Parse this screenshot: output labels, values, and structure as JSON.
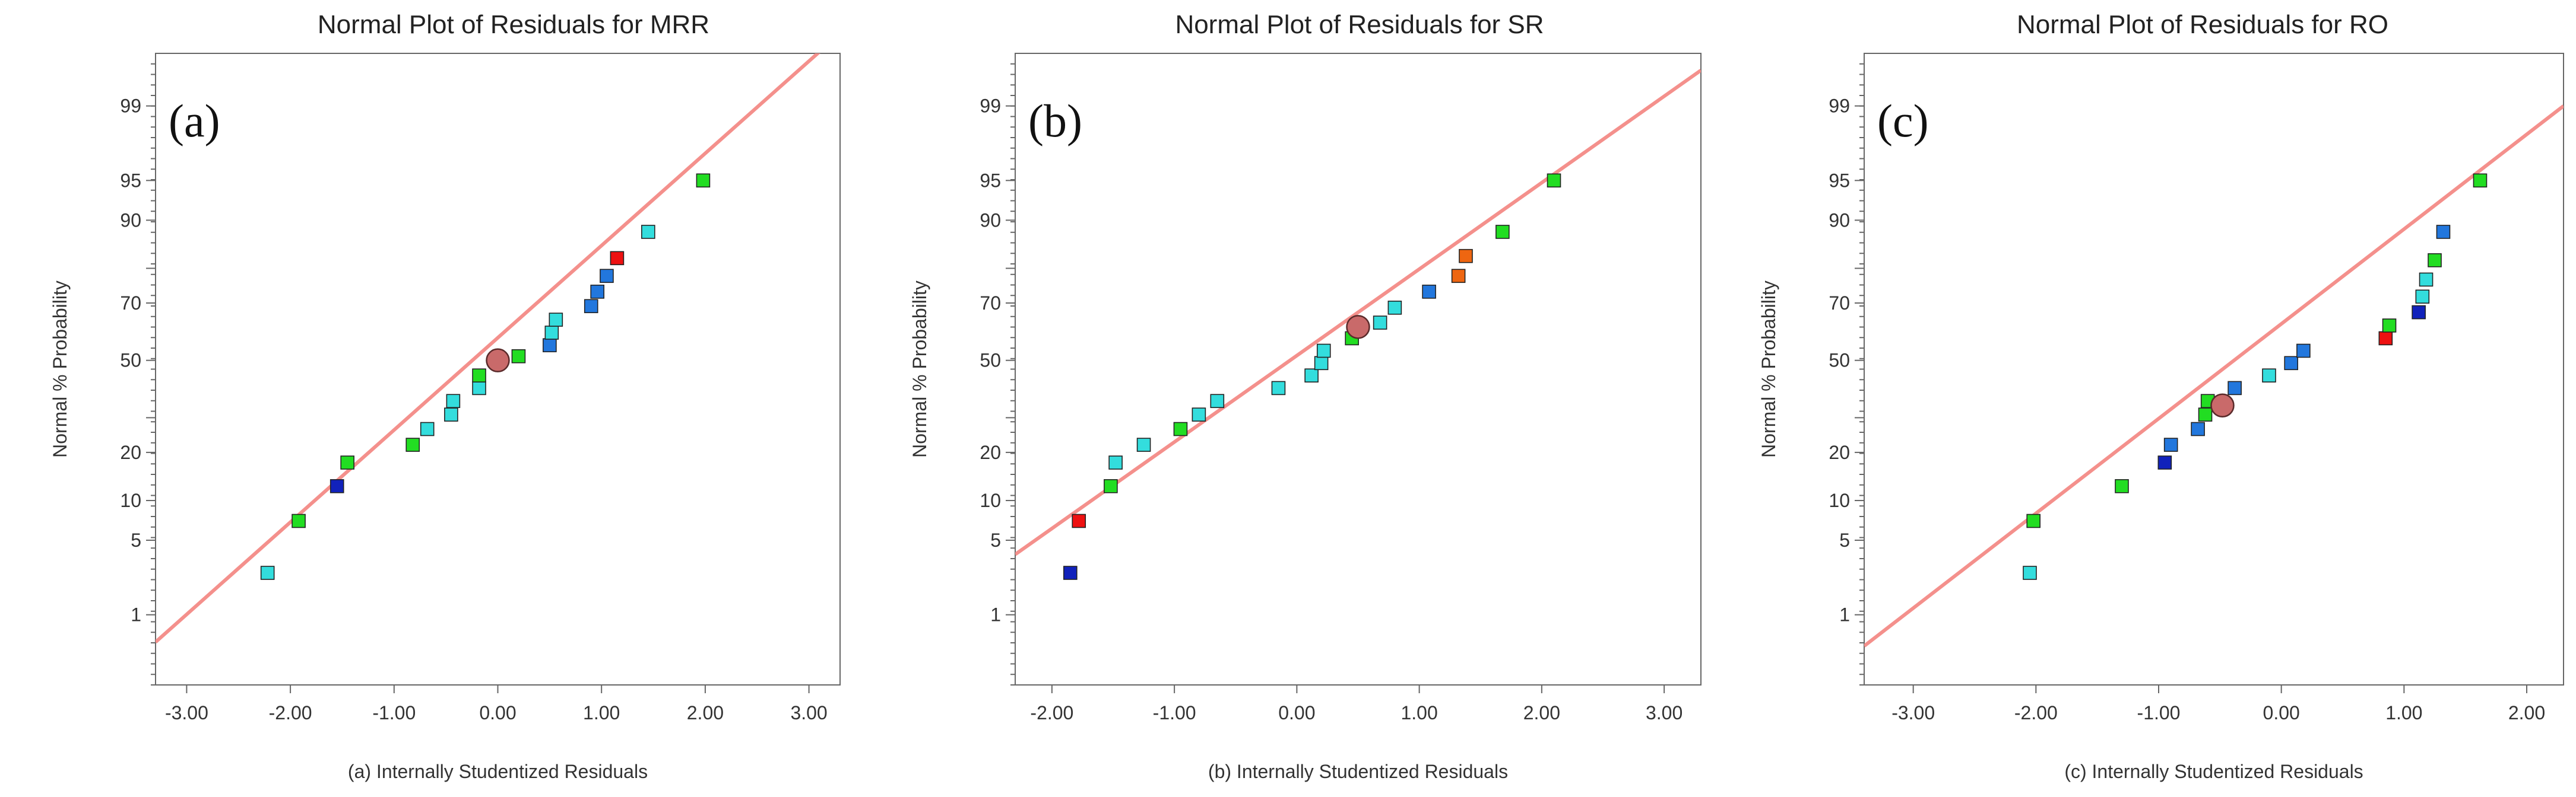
{
  "colors": {
    "fit_line": "#f4908c",
    "green": "#22dd22",
    "cyan": "#33dddd",
    "blue": "#2277dd",
    "navy": "#1122bb",
    "red": "#ee1111",
    "orange": "#ee6611",
    "center_point": "#c96a6a"
  },
  "chart_data": [
    {
      "type": "scatter",
      "panel_letter": "(a)",
      "title": "Normal Plot of Residuals for MRR",
      "xlabel": "(a) Internally Studentized Residuals",
      "ylabel": "Normal % Probability",
      "xlim": [
        -3.3,
        3.3
      ],
      "xticks": [
        -3,
        -2,
        -1,
        0,
        1,
        2,
        3
      ],
      "xtick_labels": [
        "-3.00",
        "-2.00",
        "-1.00",
        "0.00",
        "1.00",
        "2.00",
        "3.00"
      ],
      "yticks": [
        1,
        5,
        10,
        20,
        30,
        50,
        70,
        80,
        90,
        95,
        99
      ],
      "ytick_labels": [
        "1",
        "5",
        "10",
        "20",
        "",
        "50",
        "70",
        "",
        "90",
        "95",
        "99"
      ],
      "fit_line": {
        "x": [
          -3.3,
          3.3
        ],
        "y": [
          0.5,
          99.86
        ]
      },
      "points": [
        {
          "x": -2.22,
          "y": 2.6,
          "color": "cyan"
        },
        {
          "x": -1.92,
          "y": 7.1,
          "color": "green"
        },
        {
          "x": -1.55,
          "y": 12.5,
          "color": "navy"
        },
        {
          "x": -1.45,
          "y": 17.5,
          "color": "green"
        },
        {
          "x": -0.82,
          "y": 22.0,
          "color": "green"
        },
        {
          "x": -0.68,
          "y": 26.5,
          "color": "cyan"
        },
        {
          "x": -0.45,
          "y": 31.0,
          "color": "cyan"
        },
        {
          "x": -0.43,
          "y": 35.5,
          "color": "cyan"
        },
        {
          "x": -0.18,
          "y": 40.0,
          "color": "cyan"
        },
        {
          "x": -0.18,
          "y": 44.5,
          "color": "green"
        },
        {
          "x": 0.2,
          "y": 51.5,
          "color": "green"
        },
        {
          "x": 0.5,
          "y": 55.5,
          "color": "blue"
        },
        {
          "x": 0.52,
          "y": 60.0,
          "color": "cyan"
        },
        {
          "x": 0.56,
          "y": 64.5,
          "color": "cyan"
        },
        {
          "x": 0.9,
          "y": 69.0,
          "color": "blue"
        },
        {
          "x": 0.96,
          "y": 73.5,
          "color": "blue"
        },
        {
          "x": 1.05,
          "y": 78.0,
          "color": "blue"
        },
        {
          "x": 1.15,
          "y": 82.5,
          "color": "red"
        },
        {
          "x": 1.45,
          "y": 88.0,
          "color": "cyan"
        },
        {
          "x": 1.98,
          "y": 95.0,
          "color": "green"
        }
      ],
      "center_point": {
        "x": 0.0,
        "y": 50.0
      }
    },
    {
      "type": "scatter",
      "panel_letter": "(b)",
      "title": "Normal Plot of Residuals for SR",
      "xlabel": "(b) Internally Studentized Residuals",
      "ylabel": "Normal % Probability",
      "xlim": [
        -2.3,
        3.3
      ],
      "xticks": [
        -2,
        -1,
        0,
        1,
        2,
        3
      ],
      "xtick_labels": [
        "-2.00",
        "-1.00",
        "0.00",
        "1.00",
        "2.00",
        "3.00"
      ],
      "yticks": [
        1,
        5,
        10,
        20,
        30,
        50,
        70,
        80,
        90,
        95,
        99
      ],
      "ytick_labels": [
        "1",
        "5",
        "10",
        "20",
        "",
        "50",
        "70",
        "",
        "90",
        "95",
        "99"
      ],
      "fit_line": {
        "x": [
          -2.3,
          3.3
        ],
        "y": [
          3.8,
          99.6
        ]
      },
      "points": [
        {
          "x": -1.85,
          "y": 2.6,
          "color": "navy"
        },
        {
          "x": -1.78,
          "y": 7.1,
          "color": "red"
        },
        {
          "x": -1.52,
          "y": 12.5,
          "color": "green"
        },
        {
          "x": -1.48,
          "y": 17.5,
          "color": "cyan"
        },
        {
          "x": -1.25,
          "y": 22.0,
          "color": "cyan"
        },
        {
          "x": -0.95,
          "y": 26.5,
          "color": "green"
        },
        {
          "x": -0.8,
          "y": 31.0,
          "color": "cyan"
        },
        {
          "x": -0.65,
          "y": 35.5,
          "color": "cyan"
        },
        {
          "x": -0.15,
          "y": 40.0,
          "color": "cyan"
        },
        {
          "x": 0.12,
          "y": 44.5,
          "color": "cyan"
        },
        {
          "x": 0.2,
          "y": 49.0,
          "color": "cyan"
        },
        {
          "x": 0.22,
          "y": 53.5,
          "color": "cyan"
        },
        {
          "x": 0.45,
          "y": 58.0,
          "color": "green"
        },
        {
          "x": 0.68,
          "y": 63.5,
          "color": "cyan"
        },
        {
          "x": 0.8,
          "y": 68.5,
          "color": "cyan"
        },
        {
          "x": 1.08,
          "y": 73.5,
          "color": "blue"
        },
        {
          "x": 1.32,
          "y": 78.0,
          "color": "orange"
        },
        {
          "x": 1.38,
          "y": 83.0,
          "color": "orange"
        },
        {
          "x": 1.68,
          "y": 88.0,
          "color": "green"
        },
        {
          "x": 2.1,
          "y": 95.0,
          "color": "green"
        }
      ],
      "center_point": {
        "x": 0.5,
        "y": 62.0
      }
    },
    {
      "type": "scatter",
      "panel_letter": "(c)",
      "title": "Normal Plot of Residuals for RO",
      "xlabel": "(c) Internally Studentized Residuals",
      "ylabel": "Normal % Probability",
      "xlim": [
        -3.4,
        2.3
      ],
      "xticks": [
        -3,
        -2,
        -1,
        0,
        1,
        2
      ],
      "xtick_labels": [
        "-3.00",
        "-2.00",
        "-1.00",
        "0.00",
        "1.00",
        "2.00"
      ],
      "yticks": [
        1,
        5,
        10,
        20,
        30,
        50,
        70,
        80,
        90,
        95,
        99
      ],
      "ytick_labels": [
        "1",
        "5",
        "10",
        "20",
        "",
        "50",
        "70",
        "",
        "90",
        "95",
        "99"
      ],
      "fit_line": {
        "x": [
          -3.4,
          2.3
        ],
        "y": [
          0.45,
          99.0
        ]
      },
      "points": [
        {
          "x": -2.05,
          "y": 2.6,
          "color": "cyan"
        },
        {
          "x": -2.02,
          "y": 7.1,
          "color": "green"
        },
        {
          "x": -1.3,
          "y": 12.5,
          "color": "green"
        },
        {
          "x": -0.95,
          "y": 17.5,
          "color": "navy"
        },
        {
          "x": -0.9,
          "y": 22.0,
          "color": "blue"
        },
        {
          "x": -0.68,
          "y": 26.5,
          "color": "blue"
        },
        {
          "x": -0.62,
          "y": 31.0,
          "color": "green"
        },
        {
          "x": -0.6,
          "y": 35.5,
          "color": "green"
        },
        {
          "x": -0.38,
          "y": 40.0,
          "color": "blue"
        },
        {
          "x": -0.1,
          "y": 44.5,
          "color": "cyan"
        },
        {
          "x": 0.08,
          "y": 49.0,
          "color": "blue"
        },
        {
          "x": 0.18,
          "y": 53.5,
          "color": "blue"
        },
        {
          "x": 0.85,
          "y": 58.0,
          "color": "red"
        },
        {
          "x": 0.88,
          "y": 62.5,
          "color": "green"
        },
        {
          "x": 1.12,
          "y": 67.0,
          "color": "navy"
        },
        {
          "x": 1.15,
          "y": 72.0,
          "color": "cyan"
        },
        {
          "x": 1.18,
          "y": 77.0,
          "color": "cyan"
        },
        {
          "x": 1.25,
          "y": 82.0,
          "color": "green"
        },
        {
          "x": 1.32,
          "y": 88.0,
          "color": "blue"
        },
        {
          "x": 1.62,
          "y": 95.0,
          "color": "green"
        }
      ],
      "center_point": {
        "x": -0.48,
        "y": 34.0
      }
    }
  ]
}
